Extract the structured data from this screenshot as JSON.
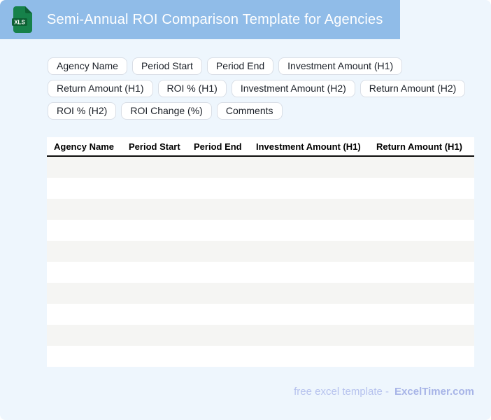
{
  "page": {
    "background": "#eef6fd"
  },
  "header": {
    "title": "Semi-Annual ROI Comparison Template for Agencies",
    "bar_color": "#90bce8",
    "xls_icon": {
      "label": "XLS",
      "body_color": "#16814a",
      "dark_color": "#0d6134"
    }
  },
  "chips": [
    "Agency Name",
    "Period Start",
    "Period End",
    "Investment Amount (H1)",
    "Return Amount (H1)",
    "ROI % (H1)",
    "Investment Amount (H2)",
    "Return Amount (H2)",
    "ROI % (H2)",
    "ROI Change (%)",
    "Comments"
  ],
  "table": {
    "columns": [
      "Agency Name",
      "Period Start",
      "Period End",
      "Investment Amount (H1)",
      "Return Amount (H1)"
    ],
    "rows": [
      [
        "",
        "",
        "",
        "",
        ""
      ],
      [
        "",
        "",
        "",
        "",
        ""
      ],
      [
        "",
        "",
        "",
        "",
        ""
      ],
      [
        "",
        "",
        "",
        "",
        ""
      ],
      [
        "",
        "",
        "",
        "",
        ""
      ],
      [
        "",
        "",
        "",
        "",
        ""
      ],
      [
        "",
        "",
        "",
        "",
        ""
      ],
      [
        "",
        "",
        "",
        "",
        ""
      ],
      [
        "",
        "",
        "",
        "",
        ""
      ],
      [
        "",
        "",
        "",
        "",
        ""
      ]
    ],
    "stripe_colors": [
      "#f5f5f3",
      "#ffffff"
    ]
  },
  "footer": {
    "text": "free excel template -",
    "brand": "ExcelTimer.com"
  }
}
